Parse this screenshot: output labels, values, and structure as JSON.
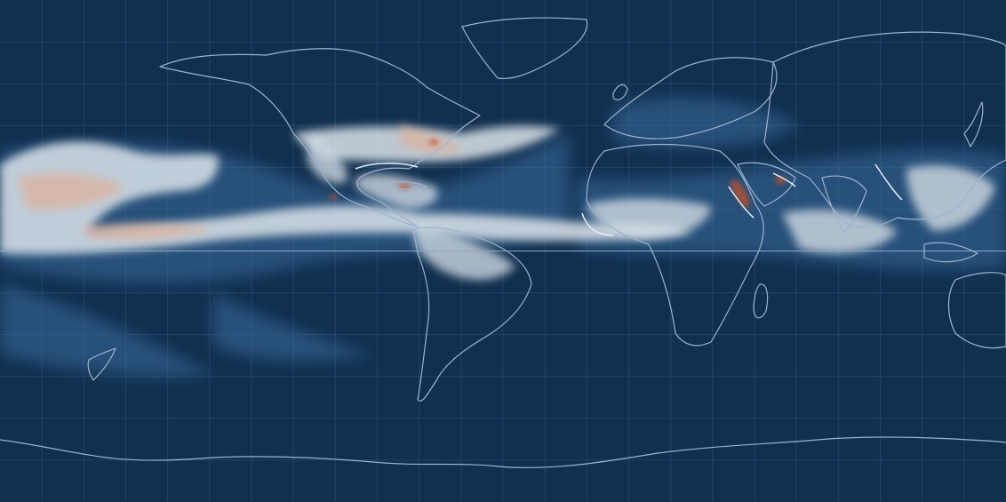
{
  "map": {
    "projection": "equirectangular",
    "lon_range": [
      -180,
      180
    ],
    "lat_range": [
      -90,
      90
    ],
    "graticule_step_deg": 15,
    "equator_visible": true,
    "colors": {
      "ocean": "#11304f",
      "graticule": "#2e4f73",
      "equator": "#8fa6c0",
      "coastline": "#9db3cf",
      "coastline_bright": "#e8eef6",
      "scale_low": "#2a5a8c",
      "scale_mid": "#dfe6ec",
      "scale_high": "#c04a28"
    }
  }
}
